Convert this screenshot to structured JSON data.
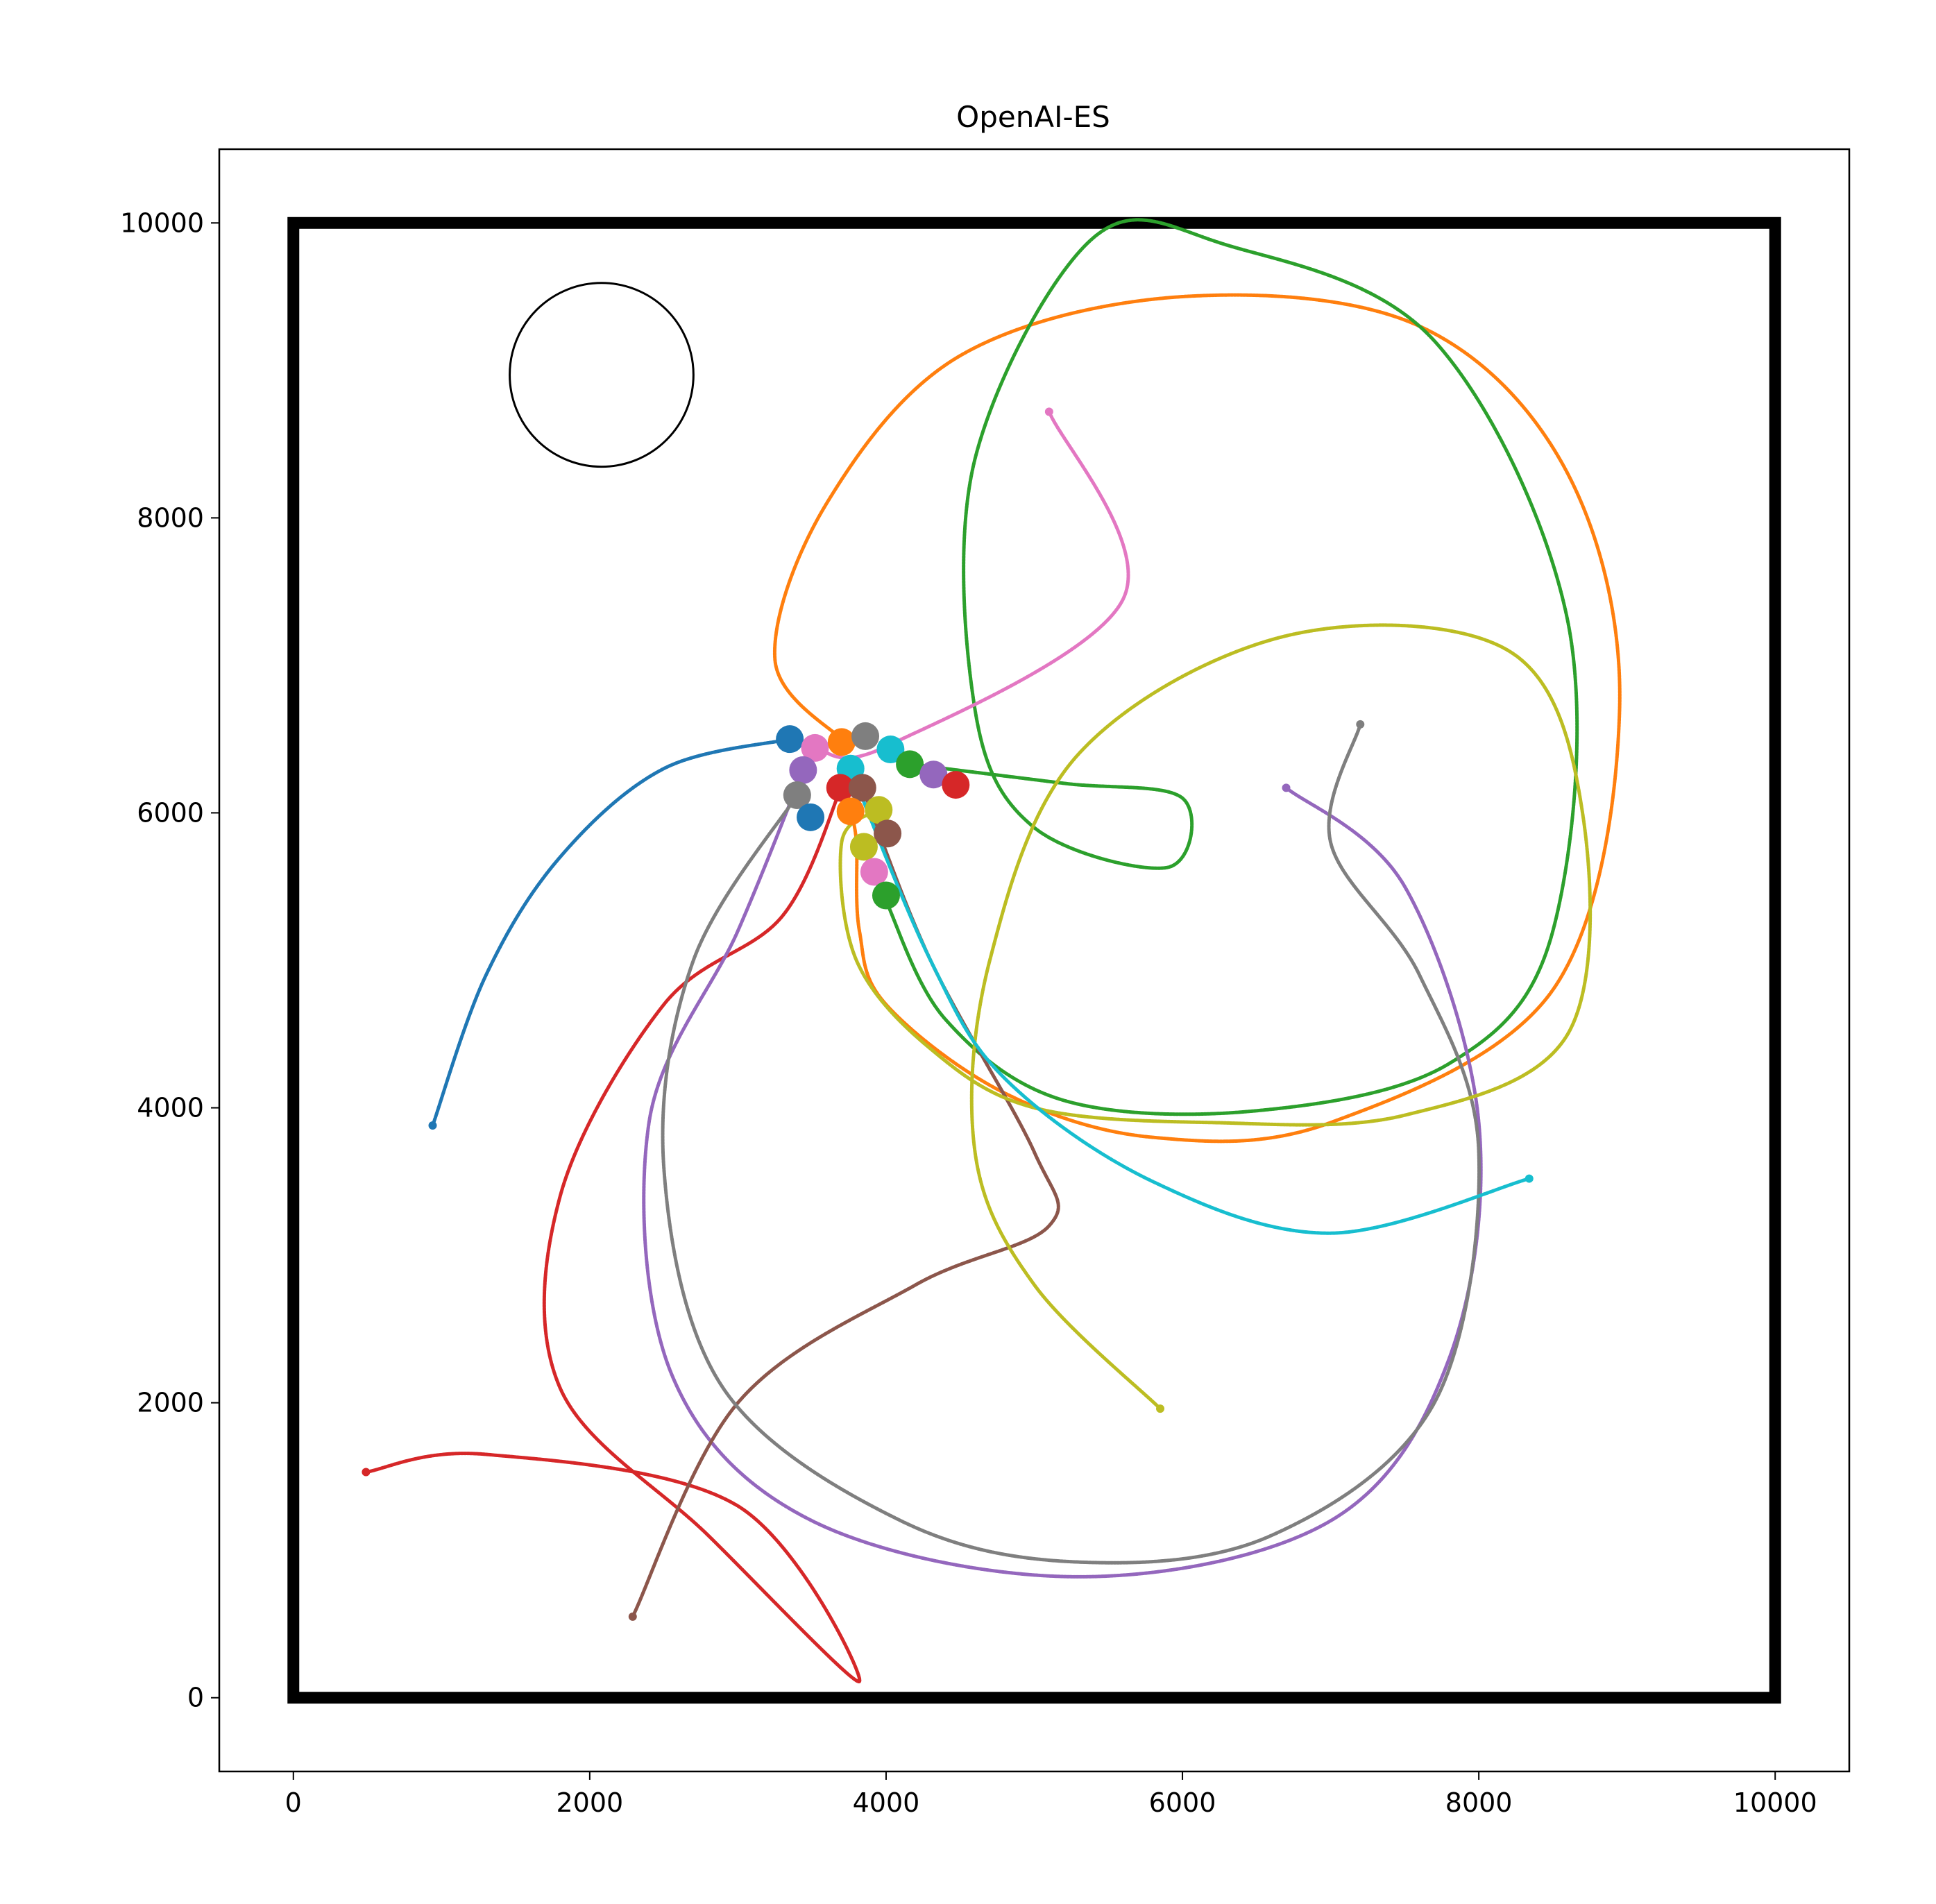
{
  "chart_data": {
    "type": "line",
    "title": "OpenAI-ES",
    "xlabel": "",
    "ylabel": "",
    "xlim": [
      -500,
      10500
    ],
    "ylim": [
      -500,
      10500
    ],
    "xticks": [
      0,
      2000,
      4000,
      6000,
      8000,
      10000
    ],
    "yticks": [
      0,
      2000,
      4000,
      6000,
      8000,
      10000
    ],
    "xtick_labels": [
      "0",
      "2000",
      "4000",
      "6000",
      "8000",
      "10000"
    ],
    "ytick_labels": [
      "0",
      "2000",
      "4000",
      "6000",
      "8000",
      "10000"
    ],
    "grid": false,
    "legend": "none",
    "arena": {
      "x": [
        0,
        10000
      ],
      "y": [
        0,
        10000
      ]
    },
    "goal_circle": {
      "cx": 2080,
      "cy": 8970,
      "r": 620
    },
    "series": [
      {
        "color": "#1f77b4",
        "points": [
          [
            3350,
            6500
          ],
          [
            2500,
            6300
          ],
          [
            1800,
            5700
          ],
          [
            1300,
            4900
          ],
          [
            940,
            3880
          ]
        ]
      },
      {
        "color": "#ff7f0e",
        "points": [
          [
            3720,
            6480
          ],
          [
            3250,
            7040
          ],
          [
            3600,
            8100
          ],
          [
            4500,
            9100
          ],
          [
            6000,
            9500
          ],
          [
            7600,
            9300
          ],
          [
            8600,
            8300
          ],
          [
            8950,
            6700
          ],
          [
            8500,
            4800
          ],
          [
            7000,
            3900
          ],
          [
            5800,
            3800
          ],
          [
            4800,
            4100
          ],
          [
            4000,
            4700
          ],
          [
            3820,
            5200
          ],
          [
            3800,
            5800
          ],
          [
            3760,
            6010
          ]
        ]
      },
      {
        "color": "#2ca02c",
        "points": [
          [
            4160,
            6330
          ],
          [
            5200,
            6200
          ],
          [
            6000,
            6100
          ],
          [
            5900,
            5630
          ],
          [
            5000,
            5900
          ],
          [
            4600,
            6700
          ],
          [
            4600,
            8400
          ],
          [
            5400,
            9900
          ],
          [
            6300,
            9850
          ],
          [
            7700,
            9200
          ],
          [
            8600,
            7300
          ],
          [
            8500,
            5200
          ],
          [
            7800,
            4300
          ],
          [
            6500,
            3980
          ],
          [
            5200,
            4050
          ],
          [
            4400,
            4600
          ],
          [
            4000,
            5400
          ]
        ]
      },
      {
        "color": "#d62728",
        "points": [
          [
            3700,
            6180
          ],
          [
            3300,
            5300
          ],
          [
            2500,
            4700
          ],
          [
            1800,
            3400
          ],
          [
            1800,
            2100
          ],
          [
            2800,
            1100
          ],
          [
            3820,
            110
          ],
          [
            3000,
            1300
          ],
          [
            1300,
            1650
          ],
          [
            490,
            1530
          ]
        ]
      },
      {
        "color": "#9467bd",
        "points": [
          [
            3440,
            6290
          ],
          [
            3000,
            5200
          ],
          [
            2400,
            3900
          ],
          [
            2550,
            2200
          ],
          [
            3500,
            1200
          ],
          [
            5300,
            820
          ],
          [
            7000,
            1200
          ],
          [
            7800,
            2300
          ],
          [
            8000,
            3900
          ],
          [
            7500,
            5500
          ],
          [
            6700,
            6170
          ]
        ]
      },
      {
        "color": "#8c564b",
        "points": [
          [
            3840,
            6170
          ],
          [
            4300,
            5000
          ],
          [
            5000,
            3700
          ],
          [
            5100,
            3200
          ],
          [
            4200,
            2800
          ],
          [
            3000,
            2000
          ],
          [
            2290,
            550
          ]
        ]
      },
      {
        "color": "#e377c2",
        "points": [
          [
            3520,
            6440
          ],
          [
            4000,
            6450
          ],
          [
            5600,
            7450
          ],
          [
            5100,
            8720
          ]
        ]
      },
      {
        "color": "#7f7f7f",
        "points": [
          [
            3400,
            6120
          ],
          [
            2700,
            5000
          ],
          [
            2500,
            3600
          ],
          [
            2900,
            2100
          ],
          [
            4100,
            1200
          ],
          [
            5300,
            920
          ],
          [
            6600,
            1100
          ],
          [
            7700,
            2000
          ],
          [
            8000,
            3700
          ],
          [
            7600,
            4900
          ],
          [
            7000,
            5800
          ],
          [
            7200,
            6600
          ]
        ]
      },
      {
        "color": "#bcbd22",
        "points": [
          [
            3950,
            6020
          ],
          [
            3700,
            5800
          ],
          [
            3800,
            5000
          ],
          [
            4300,
            4400
          ],
          [
            5000,
            4000
          ],
          [
            6200,
            3900
          ],
          [
            7500,
            3950
          ],
          [
            8600,
            4500
          ],
          [
            8700,
            6000
          ],
          [
            8200,
            7100
          ],
          [
            6700,
            7200
          ],
          [
            5300,
            6400
          ],
          [
            4700,
            5000
          ],
          [
            4600,
            3700
          ],
          [
            5000,
            2800
          ],
          [
            5850,
            1960
          ]
        ]
      },
      {
        "color": "#17becf",
        "points": [
          [
            3760,
            6300
          ],
          [
            4300,
            5000
          ],
          [
            4800,
            4200
          ],
          [
            5800,
            3500
          ],
          [
            7000,
            3150
          ],
          [
            8340,
            3520
          ]
        ]
      }
    ],
    "endpoints": [
      {
        "color": "#1f77b4",
        "x": 3350,
        "y": 6500
      },
      {
        "color": "#e377c2",
        "x": 3520,
        "y": 6440
      },
      {
        "color": "#ff7f0e",
        "x": 3700,
        "y": 6480
      },
      {
        "color": "#7f7f7f",
        "x": 3860,
        "y": 6520
      },
      {
        "color": "#9467bd",
        "x": 3440,
        "y": 6290
      },
      {
        "color": "#17becf",
        "x": 3760,
        "y": 6300
      },
      {
        "color": "#17becf",
        "x": 4030,
        "y": 6430
      },
      {
        "color": "#2ca02c",
        "x": 4160,
        "y": 6330
      },
      {
        "color": "#9467bd",
        "x": 4320,
        "y": 6260
      },
      {
        "color": "#d62728",
        "x": 4470,
        "y": 6190
      },
      {
        "color": "#7f7f7f",
        "x": 3400,
        "y": 6120
      },
      {
        "color": "#d62728",
        "x": 3690,
        "y": 6170
      },
      {
        "color": "#8c564b",
        "x": 3840,
        "y": 6170
      },
      {
        "color": "#1f77b4",
        "x": 3490,
        "y": 5970
      },
      {
        "color": "#ff7f0e",
        "x": 3760,
        "y": 6010
      },
      {
        "color": "#bcbd22",
        "x": 3950,
        "y": 6020
      },
      {
        "color": "#8c564b",
        "x": 4010,
        "y": 5860
      },
      {
        "color": "#bcbd22",
        "x": 3850,
        "y": 5770
      },
      {
        "color": "#e377c2",
        "x": 3920,
        "y": 5600
      },
      {
        "color": "#2ca02c",
        "x": 4000,
        "y": 5440
      }
    ]
  }
}
